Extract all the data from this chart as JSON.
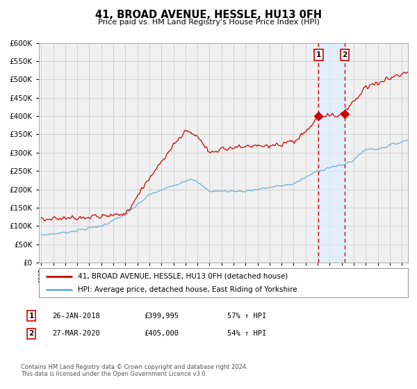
{
  "title": "41, BROAD AVENUE, HESSLE, HU13 0FH",
  "subtitle": "Price paid vs. HM Land Registry's House Price Index (HPI)",
  "legend_line1": "41, BROAD AVENUE, HESSLE, HU13 0FH (detached house)",
  "legend_line2": "HPI: Average price, detached house, East Riding of Yorkshire",
  "table_row1": [
    "1",
    "26-JAN-2018",
    "£399,995",
    "57% ↑ HPI"
  ],
  "table_row2": [
    "2",
    "27-MAR-2020",
    "£405,000",
    "54% ↑ HPI"
  ],
  "footnote1": "Contains HM Land Registry data © Crown copyright and database right 2024.",
  "footnote2": "This data is licensed under the Open Government Licence v3.0.",
  "vline1_x": 2018.07,
  "vline2_x": 2020.24,
  "sale1_x": 2018.07,
  "sale1_y": 399995,
  "sale2_x": 2020.24,
  "sale2_y": 405000,
  "hpi_color": "#6baed6",
  "price_color": "#cc0000",
  "vline_color": "#cc0000",
  "shade_color": "#ddeeff",
  "bg_color": "#f0f0f0",
  "grid_color": "#cccccc",
  "ylim": [
    0,
    600000
  ],
  "xlim": [
    1994.8,
    2025.5
  ],
  "yticks": [
    0,
    50000,
    100000,
    150000,
    200000,
    250000,
    300000,
    350000,
    400000,
    450000,
    500000,
    550000,
    600000
  ]
}
